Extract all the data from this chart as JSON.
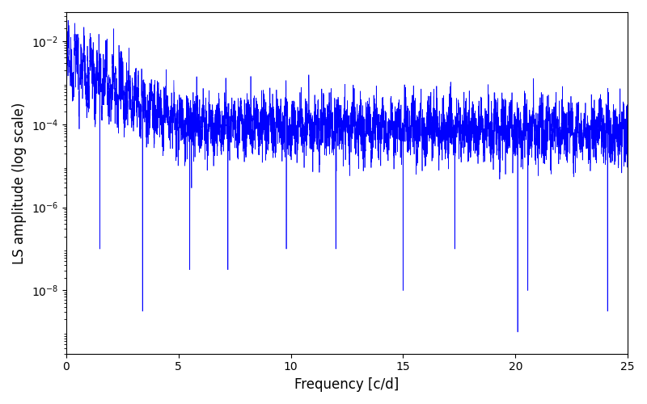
{
  "xlabel": "Frequency [c/d]",
  "ylabel": "LS amplitude (log scale)",
  "xlim": [
    0,
    25
  ],
  "ylim": [
    3e-10,
    0.05
  ],
  "line_color": "#0000ff",
  "line_width": 0.5,
  "background_color": "#ffffff",
  "figsize": [
    8.0,
    5.0
  ],
  "dpi": 100,
  "freq_min": 0.0,
  "freq_max": 25.0,
  "n_points": 6000,
  "seed": 77,
  "yticks_log": [
    -8,
    -6,
    -4,
    -2
  ],
  "xticks": [
    0,
    5,
    10,
    15,
    20,
    25
  ]
}
